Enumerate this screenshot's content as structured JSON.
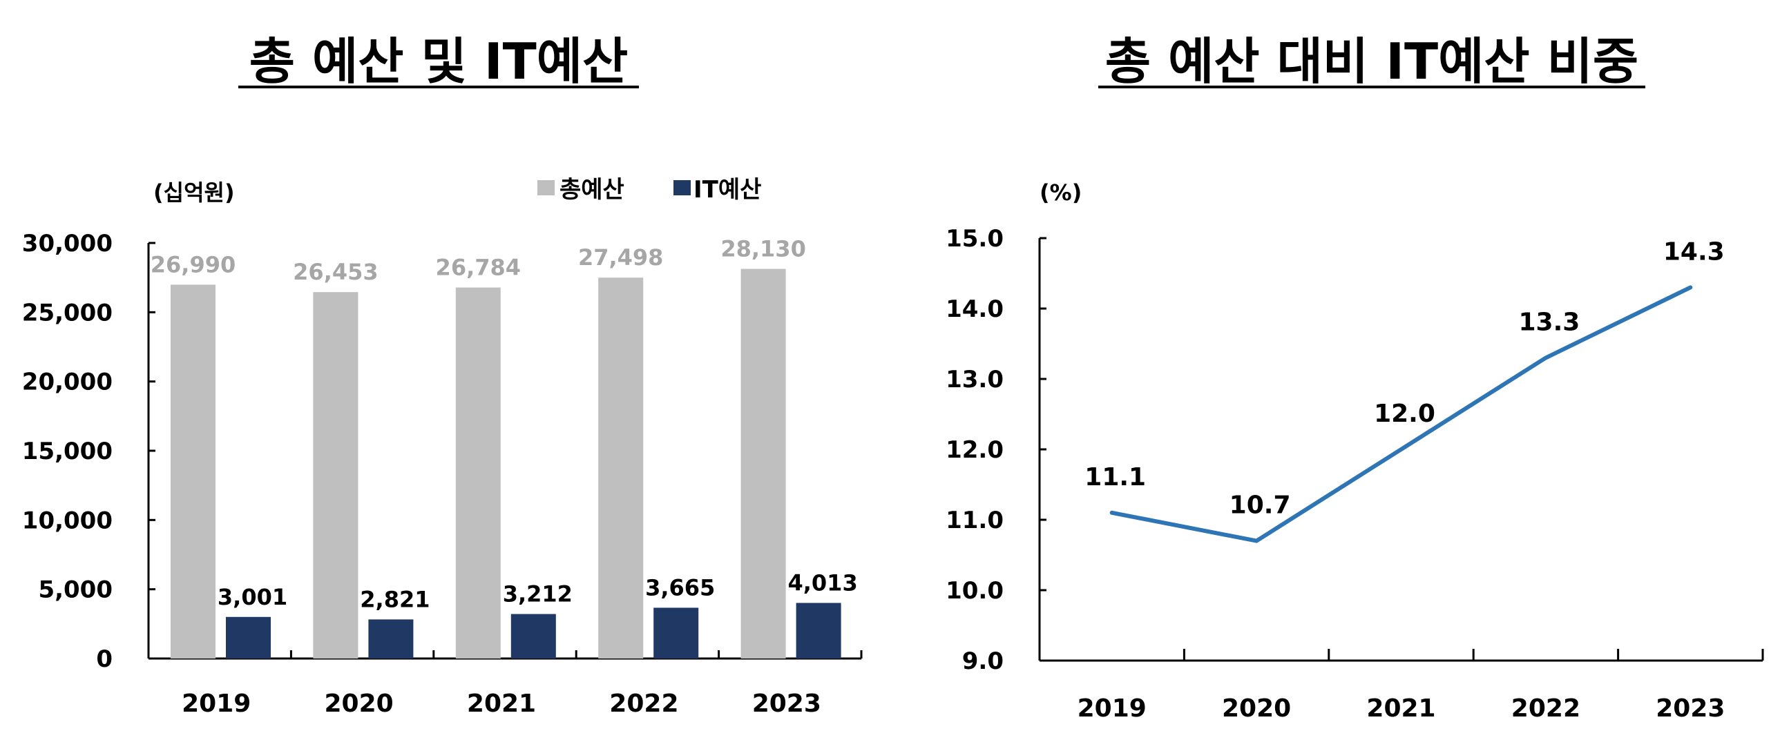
{
  "chart_data": [
    {
      "type": "bar",
      "title": "총 예산 및 IT예산",
      "ylabel": "(십억원)",
      "xlabel": "",
      "categories": [
        "2019",
        "2020",
        "2021",
        "2022",
        "2023"
      ],
      "ylim": [
        0,
        30000
      ],
      "yticks": [
        "0",
        "5,000",
        "10,000",
        "15,000",
        "20,000",
        "25,000",
        "30,000"
      ],
      "legend_position": "top-right",
      "grid": false,
      "series": [
        {
          "name": "총예산",
          "color": "#bfbfbf",
          "label_color": "#a6a6a6",
          "values": [
            26990,
            26453,
            26784,
            27498,
            28130
          ],
          "labels": [
            "26,990",
            "26,453",
            "26,784",
            "27,498",
            "28,130"
          ]
        },
        {
          "name": "IT예산",
          "color": "#1f3864",
          "label_color": "#000000",
          "values": [
            3001,
            2821,
            3212,
            3665,
            4013
          ],
          "labels": [
            "3,001",
            "2,821",
            "3,212",
            "3,665",
            "4,013"
          ]
        }
      ]
    },
    {
      "type": "line",
      "title": "총 예산 대비 IT예산 비중",
      "ylabel": "(%)",
      "xlabel": "",
      "categories": [
        "2019",
        "2020",
        "2021",
        "2022",
        "2023"
      ],
      "ylim": [
        9.0,
        15.0
      ],
      "yticks": [
        "9.0",
        "10.0",
        "11.0",
        "12.0",
        "13.0",
        "14.0",
        "15.0"
      ],
      "grid": false,
      "series": [
        {
          "color": "#2e75b6",
          "values": [
            11.1,
            10.7,
            12.0,
            13.3,
            14.3
          ],
          "labels": [
            "11.1",
            "10.7",
            "12.0",
            "13.3",
            "14.3"
          ]
        }
      ]
    }
  ]
}
